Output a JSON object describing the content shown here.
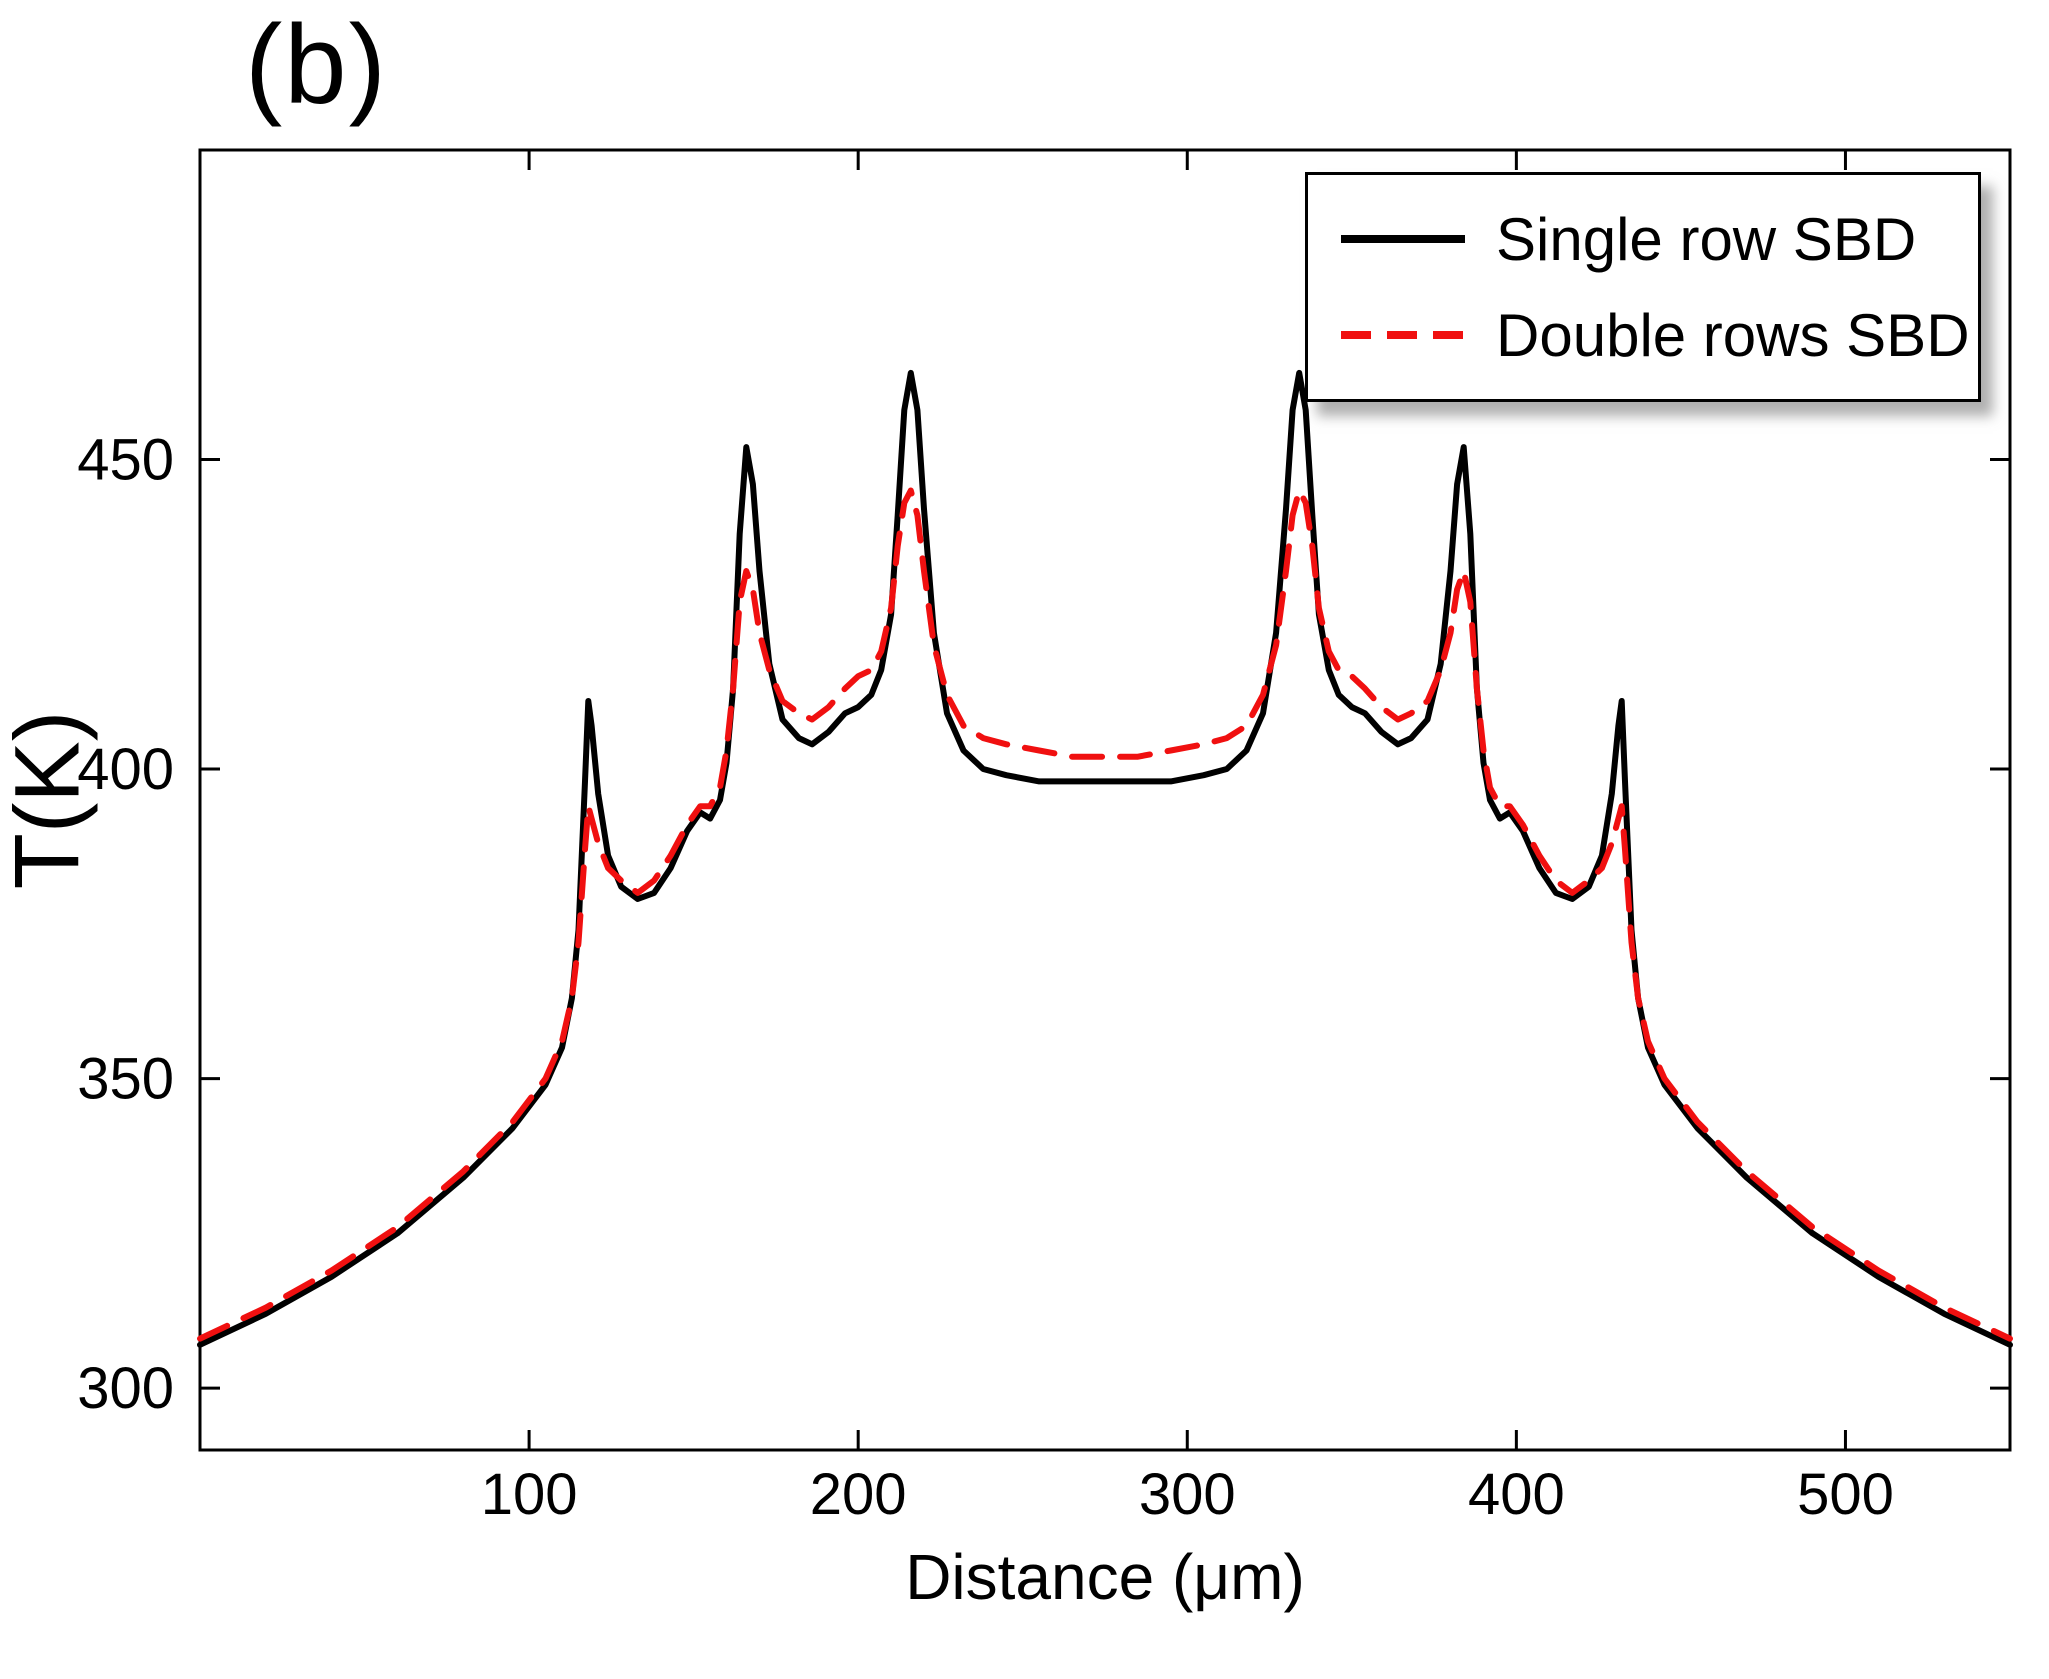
{
  "panel_label": "(b)",
  "chart_data": {
    "type": "line",
    "title": "",
    "xlabel": "Distance (μm)",
    "ylabel": "T(K)",
    "xlim": [
      0,
      550
    ],
    "ylim": [
      290,
      500
    ],
    "xticks": [
      100,
      200,
      300,
      400,
      500
    ],
    "yticks": [
      300,
      350,
      400,
      450
    ],
    "grid": false,
    "legend_position": "top-right",
    "series": [
      {
        "name": "Single row SBD",
        "color": "#000000",
        "style": "solid",
        "points": [
          [
            0,
            307
          ],
          [
            20,
            312
          ],
          [
            40,
            318
          ],
          [
            60,
            325
          ],
          [
            80,
            334
          ],
          [
            95,
            342
          ],
          [
            105,
            349
          ],
          [
            110,
            355
          ],
          [
            113,
            363
          ],
          [
            115,
            374
          ],
          [
            117,
            398
          ],
          [
            118,
            411
          ],
          [
            119,
            407
          ],
          [
            121,
            396
          ],
          [
            124,
            386
          ],
          [
            128,
            381
          ],
          [
            133,
            379
          ],
          [
            138,
            380
          ],
          [
            143,
            384
          ],
          [
            148,
            390
          ],
          [
            152,
            393
          ],
          [
            155,
            392
          ],
          [
            158,
            395
          ],
          [
            160,
            401
          ],
          [
            162,
            413
          ],
          [
            164,
            438
          ],
          [
            166,
            452
          ],
          [
            168,
            446
          ],
          [
            170,
            432
          ],
          [
            173,
            417
          ],
          [
            177,
            408
          ],
          [
            182,
            405
          ],
          [
            186,
            404
          ],
          [
            191,
            406
          ],
          [
            196,
            409
          ],
          [
            200,
            410
          ],
          [
            204,
            412
          ],
          [
            207,
            416
          ],
          [
            210,
            425
          ],
          [
            212,
            441
          ],
          [
            214,
            458
          ],
          [
            216,
            464
          ],
          [
            218,
            458
          ],
          [
            220,
            442
          ],
          [
            223,
            422
          ],
          [
            227,
            409
          ],
          [
            232,
            403
          ],
          [
            238,
            400
          ],
          [
            245,
            399
          ],
          [
            255,
            398
          ],
          [
            265,
            398
          ],
          [
            275,
            398
          ],
          [
            285,
            398
          ],
          [
            295,
            398
          ],
          [
            305,
            399
          ],
          [
            312,
            400
          ],
          [
            318,
            403
          ],
          [
            323,
            409
          ],
          [
            327,
            422
          ],
          [
            330,
            442
          ],
          [
            332,
            458
          ],
          [
            334,
            464
          ],
          [
            336,
            458
          ],
          [
            338,
            441
          ],
          [
            340,
            425
          ],
          [
            343,
            416
          ],
          [
            346,
            412
          ],
          [
            350,
            410
          ],
          [
            354,
            409
          ],
          [
            359,
            406
          ],
          [
            364,
            404
          ],
          [
            368,
            405
          ],
          [
            373,
            408
          ],
          [
            377,
            417
          ],
          [
            380,
            432
          ],
          [
            382,
            446
          ],
          [
            384,
            452
          ],
          [
            386,
            438
          ],
          [
            388,
            413
          ],
          [
            390,
            401
          ],
          [
            392,
            395
          ],
          [
            395,
            392
          ],
          [
            398,
            393
          ],
          [
            402,
            390
          ],
          [
            407,
            384
          ],
          [
            412,
            380
          ],
          [
            417,
            379
          ],
          [
            422,
            381
          ],
          [
            426,
            386
          ],
          [
            429,
            396
          ],
          [
            431,
            407
          ],
          [
            432,
            411
          ],
          [
            433,
            398
          ],
          [
            435,
            374
          ],
          [
            437,
            363
          ],
          [
            440,
            355
          ],
          [
            445,
            349
          ],
          [
            455,
            342
          ],
          [
            470,
            334
          ],
          [
            490,
            325
          ],
          [
            510,
            318
          ],
          [
            530,
            312
          ],
          [
            550,
            307
          ]
        ]
      },
      {
        "name": "Double rows SBD",
        "color": "#f01010",
        "style": "dashed",
        "points": [
          [
            0,
            308
          ],
          [
            20,
            313
          ],
          [
            40,
            319
          ],
          [
            60,
            326
          ],
          [
            80,
            335
          ],
          [
            95,
            343
          ],
          [
            105,
            350
          ],
          [
            110,
            356
          ],
          [
            113,
            363
          ],
          [
            115,
            372
          ],
          [
            117,
            387
          ],
          [
            118,
            394
          ],
          [
            119,
            392
          ],
          [
            121,
            388
          ],
          [
            124,
            384
          ],
          [
            128,
            382
          ],
          [
            133,
            380
          ],
          [
            138,
            382
          ],
          [
            143,
            386
          ],
          [
            148,
            391
          ],
          [
            152,
            394
          ],
          [
            155,
            394
          ],
          [
            158,
            397
          ],
          [
            160,
            403
          ],
          [
            162,
            413
          ],
          [
            164,
            427
          ],
          [
            166,
            432
          ],
          [
            168,
            429
          ],
          [
            170,
            422
          ],
          [
            173,
            416
          ],
          [
            177,
            411
          ],
          [
            182,
            409
          ],
          [
            186,
            408
          ],
          [
            191,
            410
          ],
          [
            196,
            413
          ],
          [
            200,
            415
          ],
          [
            204,
            416
          ],
          [
            207,
            419
          ],
          [
            210,
            426
          ],
          [
            212,
            436
          ],
          [
            214,
            443
          ],
          [
            216,
            445
          ],
          [
            218,
            441
          ],
          [
            220,
            432
          ],
          [
            223,
            420
          ],
          [
            227,
            412
          ],
          [
            232,
            407
          ],
          [
            238,
            405
          ],
          [
            245,
            404
          ],
          [
            255,
            403
          ],
          [
            265,
            402
          ],
          [
            275,
            402
          ],
          [
            285,
            402
          ],
          [
            295,
            403
          ],
          [
            305,
            404
          ],
          [
            312,
            405
          ],
          [
            318,
            407
          ],
          [
            323,
            412
          ],
          [
            327,
            420
          ],
          [
            330,
            432
          ],
          [
            332,
            441
          ],
          [
            334,
            445
          ],
          [
            336,
            443
          ],
          [
            338,
            436
          ],
          [
            340,
            426
          ],
          [
            343,
            419
          ],
          [
            346,
            416
          ],
          [
            350,
            415
          ],
          [
            354,
            413
          ],
          [
            359,
            410
          ],
          [
            364,
            408
          ],
          [
            368,
            409
          ],
          [
            373,
            411
          ],
          [
            377,
            416
          ],
          [
            380,
            422
          ],
          [
            382,
            429
          ],
          [
            384,
            432
          ],
          [
            386,
            427
          ],
          [
            388,
            413
          ],
          [
            390,
            403
          ],
          [
            392,
            397
          ],
          [
            395,
            394
          ],
          [
            398,
            394
          ],
          [
            402,
            391
          ],
          [
            407,
            386
          ],
          [
            412,
            382
          ],
          [
            417,
            380
          ],
          [
            422,
            382
          ],
          [
            426,
            384
          ],
          [
            429,
            388
          ],
          [
            431,
            392
          ],
          [
            432,
            394
          ],
          [
            433,
            387
          ],
          [
            435,
            372
          ],
          [
            437,
            363
          ],
          [
            440,
            356
          ],
          [
            445,
            350
          ],
          [
            455,
            343
          ],
          [
            470,
            335
          ],
          [
            490,
            326
          ],
          [
            510,
            319
          ],
          [
            530,
            313
          ],
          [
            550,
            308
          ]
        ]
      }
    ]
  }
}
